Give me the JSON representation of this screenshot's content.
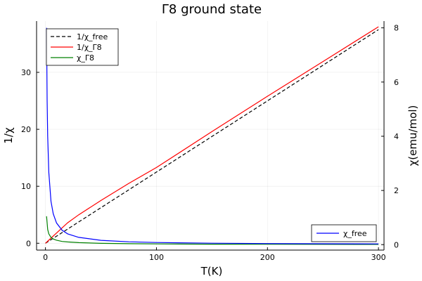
{
  "chart_data": {
    "type": "line",
    "title": "Γ8 ground state",
    "xlabel": "T(K)",
    "ylabel_left": "1/χ",
    "ylabel_right": "χ(emu/mol)",
    "xlim": [
      -8,
      305
    ],
    "ylim_left": [
      -1.2,
      39
    ],
    "ylim_right": [
      -0.2,
      8.25
    ],
    "xticks": [
      0,
      100,
      200,
      300
    ],
    "yticks_left": [
      0,
      10,
      20,
      30
    ],
    "yticks_right": [
      0,
      2,
      4,
      6,
      8
    ],
    "grid": true,
    "legend_left": {
      "placement": "top-left",
      "entries": [
        {
          "label": "1/χ_free",
          "color": "#000000",
          "dash": true
        },
        {
          "label": "1/χ_Γ8",
          "color": "#ff0000",
          "dash": false
        },
        {
          "label": "χ_Γ8",
          "color": "#008000",
          "dash": false
        }
      ]
    },
    "legend_right": {
      "placement": "bottom-right",
      "entries": [
        {
          "label": "χ_free",
          "color": "#0000ff",
          "dash": false
        }
      ]
    },
    "series": [
      {
        "name": "1/χ_free",
        "axis": "left",
        "color": "#000000",
        "dash": true,
        "x": [
          0,
          1,
          300
        ],
        "y": [
          0,
          0.125,
          37.5
        ]
      },
      {
        "name": "1/χ_Γ8",
        "axis": "left",
        "color": "#ff0000",
        "dash": false,
        "x": [
          0,
          5,
          10,
          20,
          30,
          50,
          75,
          100,
          150,
          200,
          250,
          300
        ],
        "y": [
          0,
          0.9,
          1.8,
          3.6,
          5.0,
          7.5,
          10.5,
          13.3,
          19.6,
          25.8,
          31.9,
          38.0
        ]
      },
      {
        "name": "χ_Γ8",
        "axis": "right",
        "color": "#008000",
        "dash": false,
        "x": [
          1,
          2,
          3,
          5,
          7,
          10,
          15,
          20,
          30,
          50,
          75,
          100,
          150,
          200,
          250,
          300
        ],
        "y": [
          1.05,
          0.56,
          0.4,
          0.27,
          0.21,
          0.165,
          0.12,
          0.1,
          0.075,
          0.05,
          0.036,
          0.028,
          0.019,
          0.015,
          0.012,
          0.01
        ]
      },
      {
        "name": "χ_free",
        "axis": "right",
        "color": "#0000ff",
        "dash": false,
        "x": [
          1,
          1.5,
          2,
          3,
          5,
          7,
          10,
          15,
          20,
          30,
          50,
          75,
          100,
          150,
          200,
          250,
          300
        ],
        "y": [
          8.0,
          5.33,
          4.0,
          2.67,
          1.6,
          1.14,
          0.8,
          0.53,
          0.4,
          0.27,
          0.16,
          0.107,
          0.08,
          0.053,
          0.04,
          0.032,
          0.027
        ]
      }
    ]
  }
}
